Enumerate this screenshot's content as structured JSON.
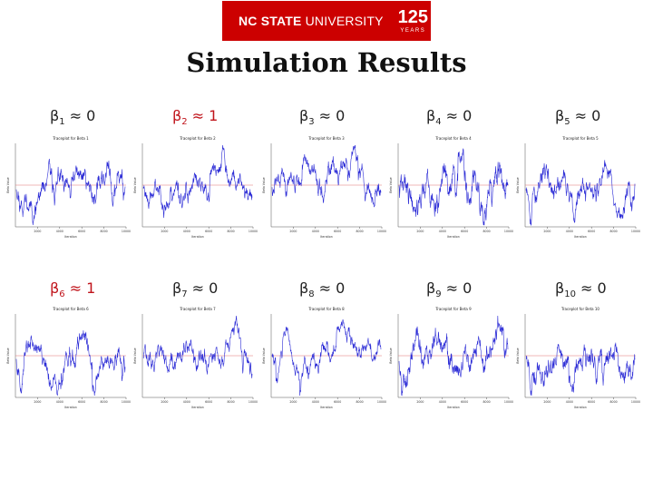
{
  "header": {
    "logo_text_bold": "NC STATE",
    "logo_text_light": "UNIVERSITY",
    "logo_number": "125",
    "logo_years": "YEARS",
    "accent_color": "#cc0000"
  },
  "slide": {
    "title": "Simulation Results"
  },
  "betas": [
    {
      "base": "β",
      "sub": "1",
      "approx": "≈ 0",
      "color": "#222222"
    },
    {
      "base": "β",
      "sub": "2",
      "approx": "≈ 1",
      "color": "#c0141b"
    },
    {
      "base": "β",
      "sub": "3",
      "approx": "≈ 0",
      "color": "#222222"
    },
    {
      "base": "β",
      "sub": "4",
      "approx": "≈ 0",
      "color": "#222222"
    },
    {
      "base": "β",
      "sub": "5",
      "approx": "≈ 0",
      "color": "#222222"
    },
    {
      "base": "β",
      "sub": "6",
      "approx": "≈ 1",
      "color": "#c0141b"
    },
    {
      "base": "β",
      "sub": "7",
      "approx": "≈ 0",
      "color": "#222222"
    },
    {
      "base": "β",
      "sub": "8",
      "approx": "≈ 0",
      "color": "#222222"
    },
    {
      "base": "β",
      "sub": "9",
      "approx": "≈ 0",
      "color": "#222222"
    },
    {
      "base": "β",
      "sub": "10",
      "approx": "≈ 0",
      "color": "#222222"
    }
  ],
  "chart_data": [
    {
      "type": "line",
      "title": "Traceplot for Beta 1",
      "xlabel": "Iteration",
      "ylabel": "Beta Value",
      "xlim": [
        0,
        10000
      ],
      "xticks": [
        2000,
        4000,
        6000,
        8000,
        10000
      ],
      "reference_line": 0,
      "series_color": "#2b2bd6",
      "ref_color": "#e07070",
      "seed": 11
    },
    {
      "type": "line",
      "title": "Traceplot for Beta 2",
      "xlabel": "Iteration",
      "ylabel": "Beta Value",
      "xlim": [
        0,
        10000
      ],
      "xticks": [
        2000,
        4000,
        6000,
        8000,
        10000
      ],
      "reference_line": 1,
      "series_color": "#2b2bd6",
      "ref_color": "#e07070",
      "seed": 23
    },
    {
      "type": "line",
      "title": "Traceplot for Beta 3",
      "xlabel": "Iteration",
      "ylabel": "Beta Value",
      "xlim": [
        0,
        10000
      ],
      "xticks": [
        2000,
        4000,
        6000,
        8000,
        10000
      ],
      "reference_line": 0,
      "series_color": "#2b2bd6",
      "ref_color": "#e07070",
      "seed": 37
    },
    {
      "type": "line",
      "title": "Traceplot for Beta 4",
      "xlabel": "Iteration",
      "ylabel": "Beta Value",
      "xlim": [
        0,
        10000
      ],
      "xticks": [
        2000,
        4000,
        6000,
        8000,
        10000
      ],
      "reference_line": 0,
      "series_color": "#2b2bd6",
      "ref_color": "#e07070",
      "seed": 41
    },
    {
      "type": "line",
      "title": "Traceplot for Beta 5",
      "xlabel": "Iteration",
      "ylabel": "Beta Value",
      "xlim": [
        0,
        10000
      ],
      "xticks": [
        2000,
        4000,
        6000,
        8000,
        10000
      ],
      "reference_line": 0,
      "series_color": "#2b2bd6",
      "ref_color": "#e07070",
      "seed": 53
    },
    {
      "type": "line",
      "title": "Traceplot for Beta 6",
      "xlabel": "Iteration",
      "ylabel": "Beta Value",
      "xlim": [
        0,
        10000
      ],
      "xticks": [
        2000,
        4000,
        6000,
        8000,
        10000
      ],
      "reference_line": 1,
      "series_color": "#2b2bd6",
      "ref_color": "#e07070",
      "seed": 67
    },
    {
      "type": "line",
      "title": "Traceplot for Beta 7",
      "xlabel": "Iteration",
      "ylabel": "Beta Value",
      "xlim": [
        0,
        10000
      ],
      "xticks": [
        2000,
        4000,
        6000,
        8000,
        10000
      ],
      "reference_line": 0,
      "series_color": "#2b2bd6",
      "ref_color": "#e07070",
      "seed": 71
    },
    {
      "type": "line",
      "title": "Traceplot for Beta 8",
      "xlabel": "Iteration",
      "ylabel": "Beta Value",
      "xlim": [
        0,
        10000
      ],
      "xticks": [
        2000,
        4000,
        6000,
        8000,
        10000
      ],
      "reference_line": 0,
      "series_color": "#2b2bd6",
      "ref_color": "#e07070",
      "seed": 83
    },
    {
      "type": "line",
      "title": "Traceplot for Beta 9",
      "xlabel": "Iteration",
      "ylabel": "Beta Value",
      "xlim": [
        0,
        10000
      ],
      "xticks": [
        2000,
        4000,
        6000,
        8000,
        10000
      ],
      "reference_line": 0,
      "series_color": "#2b2bd6",
      "ref_color": "#e07070",
      "seed": 97
    },
    {
      "type": "line",
      "title": "Traceplot for Beta 10",
      "xlabel": "Iteration",
      "ylabel": "Beta Value",
      "xlim": [
        0,
        10000
      ],
      "xticks": [
        2000,
        4000,
        6000,
        8000,
        10000
      ],
      "reference_line": 0,
      "series_color": "#2b2bd6",
      "ref_color": "#e07070",
      "seed": 101
    }
  ]
}
